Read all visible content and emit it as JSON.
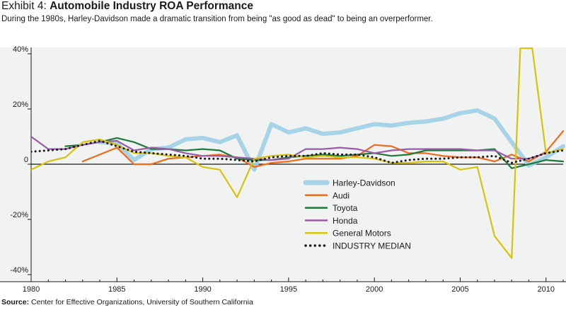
{
  "header": {
    "exhibit_label": "Exhibit 4:",
    "title": "Automobile Industry ROA Performance",
    "subtitle": "During the 1980s, Harley-Davidson made a dramatic transition from being \"as good as dead\" to being an overperformer."
  },
  "footer": {
    "source_label": "Source:",
    "source_text": "Center for Effective Organizations, University of Southern California"
  },
  "chart_data": {
    "type": "line",
    "title": "Automobile Industry ROA Performance",
    "xlabel": "",
    "ylabel": "",
    "xlim": [
      1980,
      2011
    ],
    "ylim": [
      -40,
      40
    ],
    "x_ticks": [
      {
        "value": 1980,
        "label": "1980"
      },
      {
        "value": 1985,
        "label": "1985"
      },
      {
        "value": 1990,
        "label": "1990"
      },
      {
        "value": 1995,
        "label": "1995"
      },
      {
        "value": 2000,
        "label": "2000"
      },
      {
        "value": 2005,
        "label": "2005"
      },
      {
        "value": 2010,
        "label": "2010"
      }
    ],
    "y_ticks": [
      {
        "value": 40,
        "label": "40%"
      },
      {
        "value": 20,
        "label": "20%"
      },
      {
        "value": 0,
        "label": "0"
      },
      {
        "value": -20,
        "label": "-20%"
      },
      {
        "value": -40,
        "label": "-40%"
      }
    ],
    "grid": false,
    "legend_position": "center-right",
    "series": [
      {
        "name": "Harley-Davidson",
        "color": "#9fcfe6",
        "style": "thick",
        "points": [
          [
            1984,
            8
          ],
          [
            1985,
            7.5
          ],
          [
            1986,
            1.5
          ],
          [
            1987,
            5.5
          ],
          [
            1988,
            6
          ],
          [
            1989,
            9
          ],
          [
            1990,
            9.5
          ],
          [
            1991,
            8
          ],
          [
            1992,
            10.5
          ],
          [
            1993,
            -2
          ],
          [
            1994,
            14.5
          ],
          [
            1995,
            11.5
          ],
          [
            1996,
            13
          ],
          [
            1997,
            11
          ],
          [
            1998,
            11.5
          ],
          [
            1999,
            13
          ],
          [
            2000,
            14.5
          ],
          [
            2001,
            14
          ],
          [
            2002,
            15
          ],
          [
            2003,
            15.5
          ],
          [
            2004,
            16.5
          ],
          [
            2005,
            18.5
          ],
          [
            2006,
            19.5
          ],
          [
            2007,
            16.5
          ],
          [
            2008,
            8
          ],
          [
            2009,
            -0.5
          ],
          [
            2010,
            2.5
          ],
          [
            2011,
            6.5
          ]
        ]
      },
      {
        "name": "Audi",
        "color": "#f06a1a",
        "style": "solid",
        "points": [
          [
            1983,
            1
          ],
          [
            1985,
            6
          ],
          [
            1986,
            0
          ],
          [
            1987,
            0
          ],
          [
            1988,
            2
          ],
          [
            1989,
            2.5
          ],
          [
            1990,
            3
          ],
          [
            1991,
            3.5
          ],
          [
            1992,
            2.5
          ],
          [
            1993,
            -1
          ],
          [
            1994,
            0.5
          ],
          [
            1995,
            1
          ],
          [
            1996,
            2
          ],
          [
            1997,
            2
          ],
          [
            1998,
            2
          ],
          [
            1999,
            3
          ],
          [
            2000,
            7
          ],
          [
            2001,
            6.5
          ],
          [
            2002,
            4
          ],
          [
            2003,
            4
          ],
          [
            2004,
            3
          ],
          [
            2005,
            2.5
          ],
          [
            2006,
            2.5
          ],
          [
            2007,
            1
          ],
          [
            2008,
            3.5
          ],
          [
            2009,
            1
          ],
          [
            2010,
            4.5
          ],
          [
            2011,
            12
          ]
        ]
      },
      {
        "name": "Toyota",
        "color": "#1f7a3a",
        "style": "solid",
        "points": [
          [
            1982,
            6.5
          ],
          [
            1983,
            7
          ],
          [
            1984,
            8
          ],
          [
            1985,
            9.5
          ],
          [
            1986,
            8
          ],
          [
            1987,
            5.5
          ],
          [
            1988,
            5.5
          ],
          [
            1989,
            5
          ],
          [
            1990,
            5.5
          ],
          [
            1991,
            5
          ],
          [
            1992,
            2
          ],
          [
            1993,
            1.5
          ],
          [
            1994,
            1.5
          ],
          [
            1995,
            2.5
          ],
          [
            1996,
            3
          ],
          [
            1997,
            3.5
          ],
          [
            1998,
            3
          ],
          [
            1999,
            3.5
          ],
          [
            2000,
            4
          ],
          [
            2001,
            3
          ],
          [
            2002,
            3.5
          ],
          [
            2003,
            5
          ],
          [
            2004,
            5
          ],
          [
            2005,
            5
          ],
          [
            2006,
            5
          ],
          [
            2007,
            5.5
          ],
          [
            2008,
            -1.5
          ],
          [
            2009,
            0
          ],
          [
            2010,
            1.5
          ],
          [
            2011,
            1
          ]
        ]
      },
      {
        "name": "Honda",
        "color": "#9a5ba8",
        "style": "solid",
        "points": [
          [
            1980,
            10
          ],
          [
            1981,
            5.5
          ],
          [
            1982,
            5.5
          ],
          [
            1983,
            7
          ],
          [
            1984,
            8
          ],
          [
            1985,
            8.5
          ],
          [
            1986,
            5
          ],
          [
            1987,
            6
          ],
          [
            1988,
            5.5
          ],
          [
            1989,
            4
          ],
          [
            1990,
            3
          ],
          [
            1991,
            3
          ],
          [
            1992,
            2.5
          ],
          [
            1993,
            2
          ],
          [
            1994,
            1.5
          ],
          [
            1995,
            2
          ],
          [
            1996,
            5.5
          ],
          [
            1997,
            5.5
          ],
          [
            1998,
            6
          ],
          [
            1999,
            5.5
          ],
          [
            2000,
            4
          ],
          [
            2001,
            5
          ],
          [
            2002,
            5.5
          ],
          [
            2003,
            5.5
          ],
          [
            2004,
            5.5
          ],
          [
            2005,
            5.5
          ],
          [
            2006,
            5
          ],
          [
            2007,
            5
          ],
          [
            2008,
            2
          ],
          [
            2009,
            2
          ],
          [
            2010,
            4
          ],
          [
            2011,
            5.5
          ]
        ]
      },
      {
        "name": "General Motors",
        "color": "#d7c30a",
        "style": "solid",
        "points": [
          [
            1980,
            -2
          ],
          [
            1981,
            1
          ],
          [
            1982,
            2.5
          ],
          [
            1983,
            8
          ],
          [
            1984,
            9
          ],
          [
            1985,
            7
          ],
          [
            1986,
            4
          ],
          [
            1987,
            4
          ],
          [
            1988,
            3
          ],
          [
            1989,
            2.5
          ],
          [
            1990,
            -1
          ],
          [
            1991,
            -2
          ],
          [
            1992,
            -12
          ],
          [
            1993,
            2
          ],
          [
            1994,
            3
          ],
          [
            1995,
            3.5
          ],
          [
            1996,
            2.5
          ],
          [
            1997,
            3
          ],
          [
            1998,
            2.5
          ],
          [
            1999,
            2.5
          ],
          [
            2000,
            2
          ],
          [
            2001,
            0.5
          ],
          [
            2002,
            0.5
          ],
          [
            2003,
            1
          ],
          [
            2004,
            1
          ],
          [
            2005,
            -2
          ],
          [
            2006,
            -1
          ],
          [
            2007,
            -26
          ],
          [
            2008,
            -34
          ],
          [
            2008.5,
            42
          ],
          [
            2009.2,
            42
          ],
          [
            2010,
            4
          ],
          [
            2011,
            5.5
          ]
        ]
      },
      {
        "name": "INDUSTRY MEDIAN",
        "color": "#1a1a1a",
        "style": "dotted",
        "points": [
          [
            1980,
            4.5
          ],
          [
            1981,
            5
          ],
          [
            1982,
            5.5
          ],
          [
            1983,
            7
          ],
          [
            1984,
            8.5
          ],
          [
            1985,
            6.5
          ],
          [
            1986,
            4.5
          ],
          [
            1987,
            4
          ],
          [
            1988,
            3.5
          ],
          [
            1989,
            3
          ],
          [
            1990,
            2
          ],
          [
            1991,
            2
          ],
          [
            1992,
            1.5
          ],
          [
            1993,
            1
          ],
          [
            1994,
            2.5
          ],
          [
            1995,
            3
          ],
          [
            1996,
            3
          ],
          [
            1997,
            4
          ],
          [
            1998,
            3.5
          ],
          [
            1999,
            3.5
          ],
          [
            2000,
            2.5
          ],
          [
            2001,
            0.5
          ],
          [
            2002,
            1.5
          ],
          [
            2003,
            2
          ],
          [
            2004,
            2
          ],
          [
            2005,
            2.5
          ],
          [
            2006,
            2.5
          ],
          [
            2007,
            3
          ],
          [
            2008,
            0.5
          ],
          [
            2009,
            2
          ],
          [
            2010,
            4
          ],
          [
            2011,
            5
          ]
        ]
      }
    ]
  }
}
